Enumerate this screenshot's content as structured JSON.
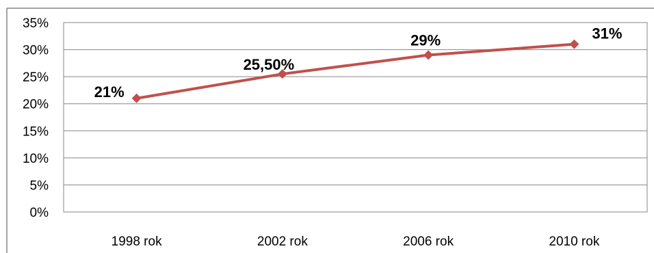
{
  "chart_data": {
    "type": "line",
    "title": "",
    "xlabel": "",
    "ylabel": "",
    "categories": [
      "1998 rok",
      "2002 rok",
      "2006 rok",
      "2010 rok"
    ],
    "series": [
      {
        "values": [
          21,
          25.5,
          29,
          31
        ],
        "data_labels": [
          "21%",
          "25,50%",
          "29%",
          "31%"
        ],
        "color": "#C0504D"
      }
    ],
    "ylim": [
      0,
      35
    ],
    "y_ticks": [
      0,
      5,
      10,
      15,
      20,
      25,
      30,
      35
    ],
    "y_tick_labels": [
      "0%",
      "5%",
      "10%",
      "15%",
      "20%",
      "25%",
      "30%",
      "35%"
    ],
    "grid": true,
    "legend": "none",
    "colors": {
      "line": "#C0504D",
      "marker": "#C0504D",
      "grid": "#868686",
      "axis": "#868686",
      "border": "#868686"
    }
  }
}
